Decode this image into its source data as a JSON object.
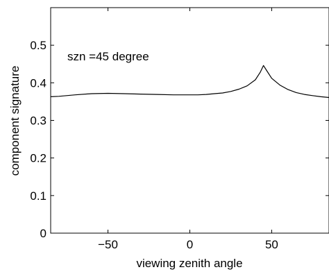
{
  "chart_data": {
    "type": "line",
    "title": "",
    "xlabel": "viewing zenith angle",
    "ylabel": "component signature",
    "xlim": [
      -85,
      85
    ],
    "ylim": [
      0,
      0.6
    ],
    "xticks": [
      -50,
      0,
      50
    ],
    "xtick_labels": [
      "−50",
      "0",
      "50"
    ],
    "yticks": [
      0,
      0.1,
      0.2,
      0.3,
      0.4,
      0.5
    ],
    "ytick_labels": [
      "0",
      "0.1",
      "0.2",
      "0.3",
      "0.4",
      "0.5"
    ],
    "grid": false,
    "annotation": "szn =45 degree",
    "line_color": "#000000",
    "series": [
      {
        "x": [
          -85,
          -80,
          -70,
          -60,
          -50,
          -40,
          -30,
          -20,
          -10,
          0,
          5,
          10,
          15,
          20,
          25,
          30,
          35,
          40,
          43,
          45,
          47,
          50,
          55,
          60,
          65,
          70,
          75,
          80,
          85
        ],
        "values": [
          0.363,
          0.364,
          0.368,
          0.371,
          0.372,
          0.371,
          0.37,
          0.369,
          0.368,
          0.368,
          0.368,
          0.369,
          0.371,
          0.373,
          0.377,
          0.383,
          0.392,
          0.408,
          0.428,
          0.446,
          0.432,
          0.412,
          0.394,
          0.382,
          0.374,
          0.369,
          0.366,
          0.363,
          0.361
        ]
      }
    ]
  }
}
